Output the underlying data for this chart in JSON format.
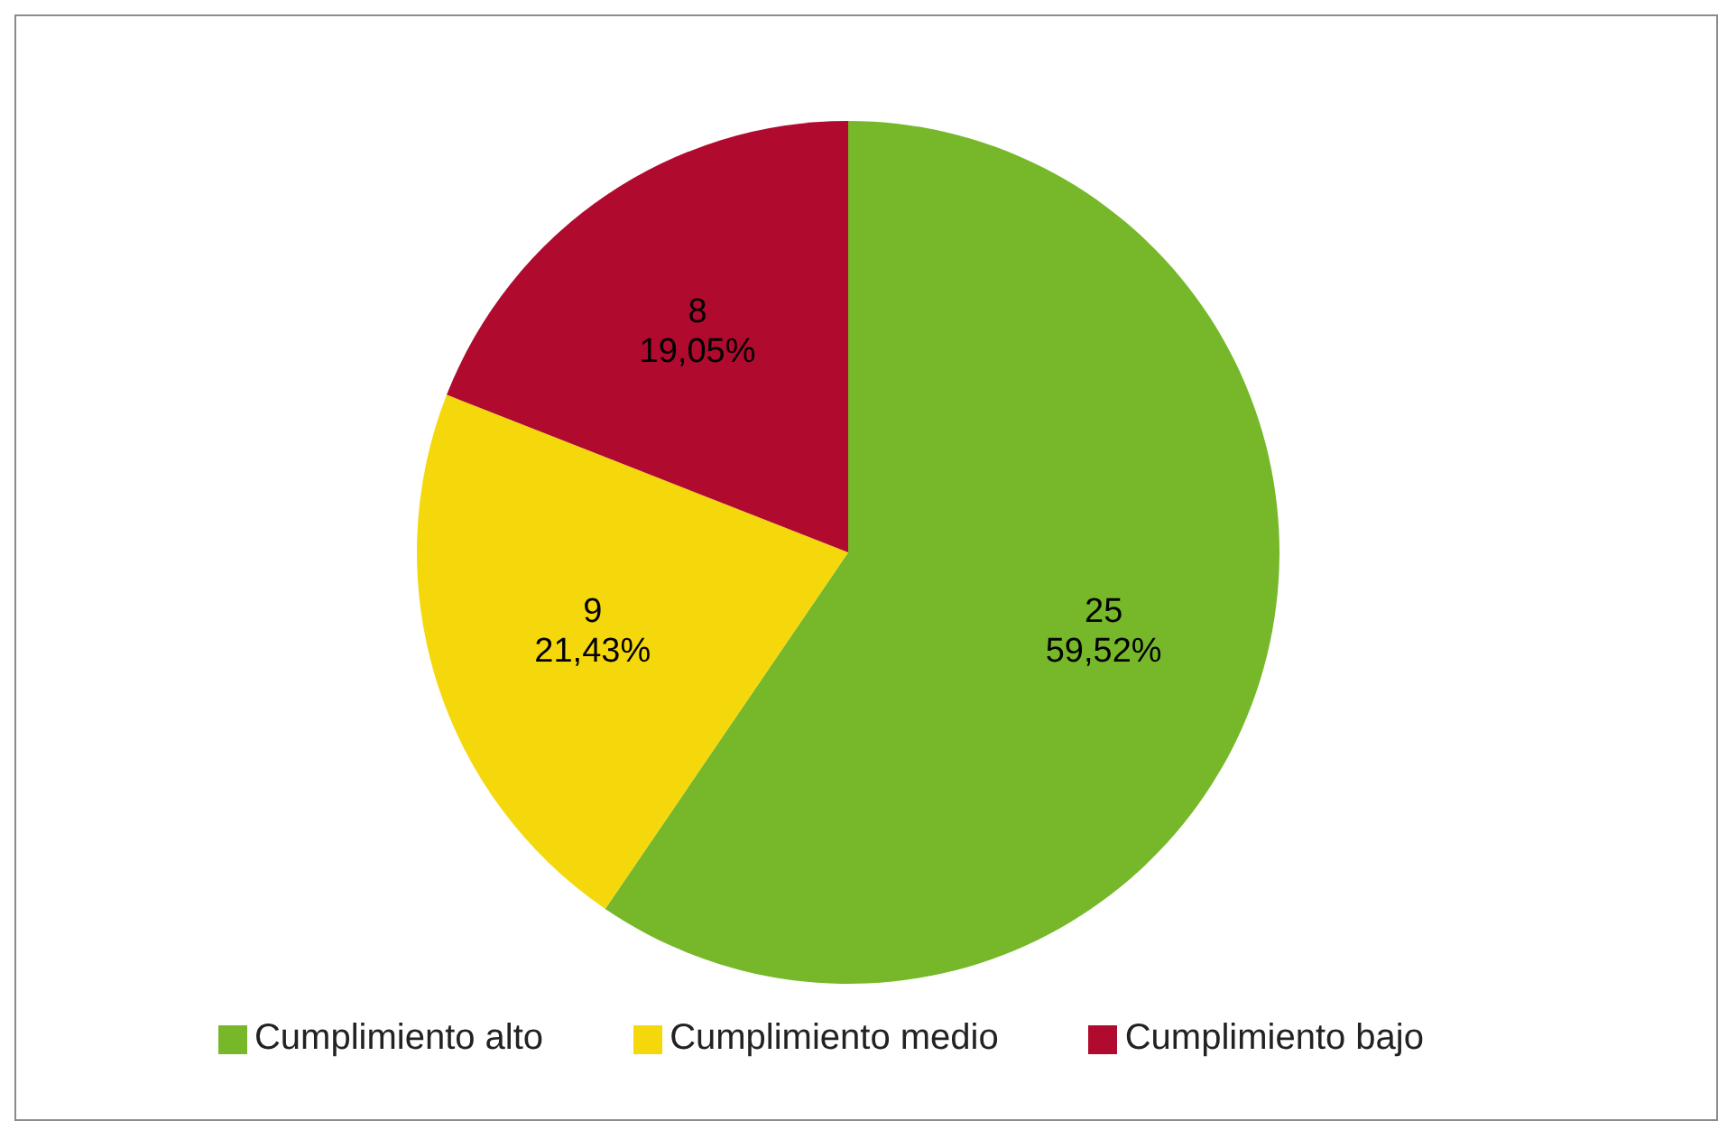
{
  "chart_data": {
    "type": "pie",
    "categories": [
      "Cumplimiento alto",
      "Cumplimiento medio",
      "Cumplimiento bajo"
    ],
    "values": [
      25,
      9,
      8
    ],
    "colors": [
      "#76b82a",
      "#f5d80c",
      "#b00a2e"
    ],
    "value_labels": [
      "25\n59,52%",
      "9\n21,43%",
      "8\n19,05%"
    ],
    "legend": "bottom"
  }
}
